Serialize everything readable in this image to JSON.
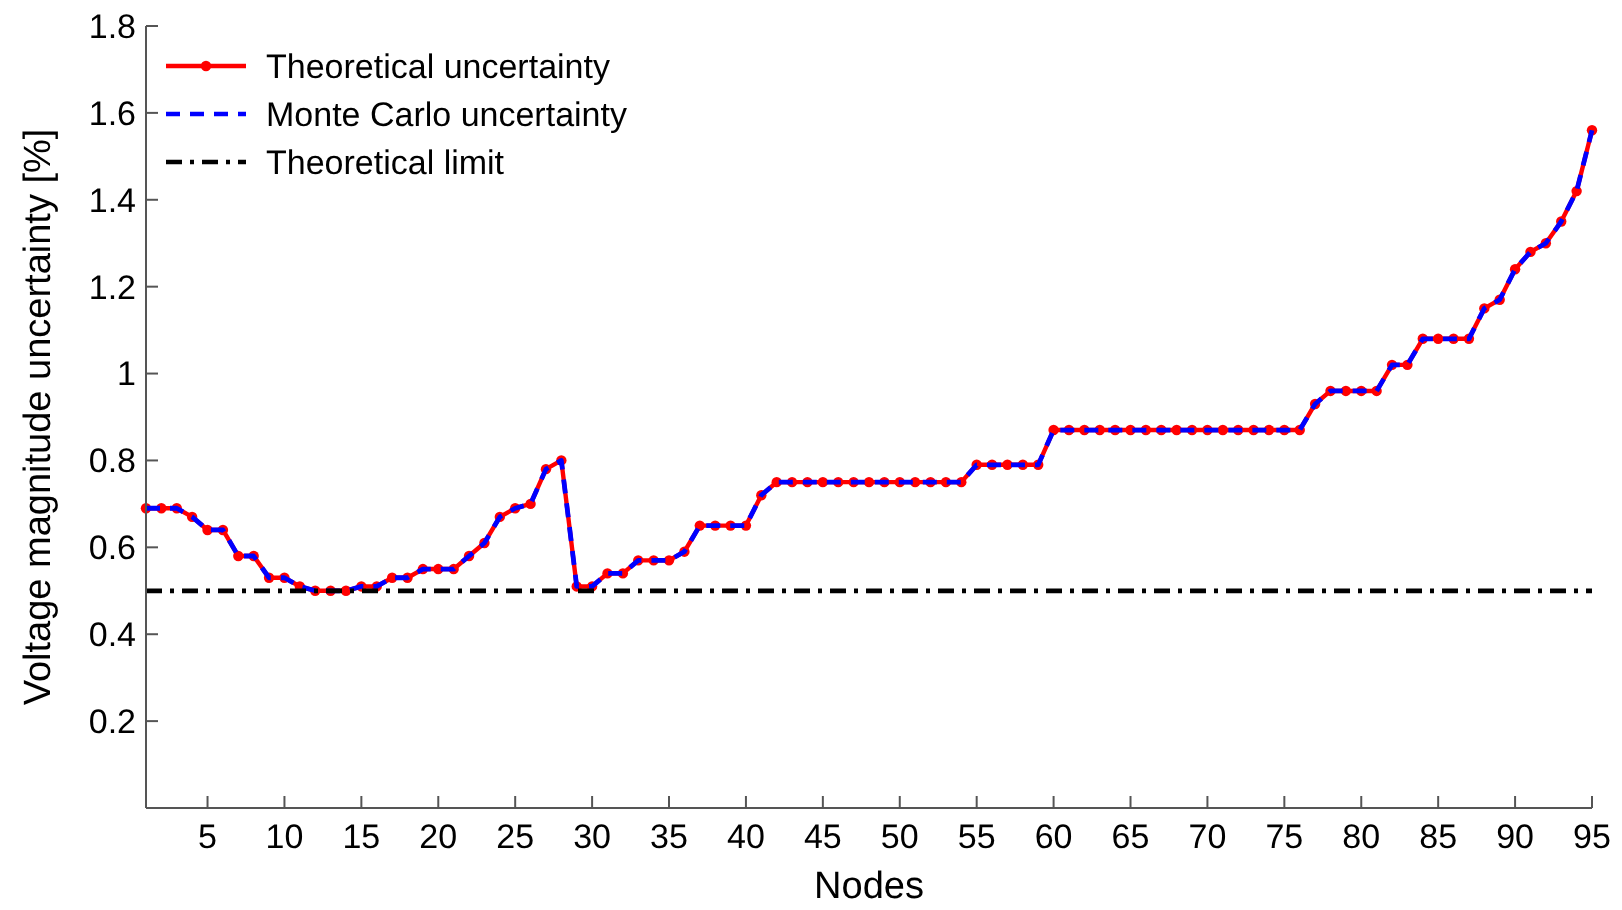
{
  "chart_data": {
    "type": "line",
    "xlabel": "Nodes",
    "ylabel": "Voltage magnitude uncertainty [%]",
    "x": [
      1,
      2,
      3,
      4,
      5,
      6,
      7,
      8,
      9,
      10,
      11,
      12,
      13,
      14,
      15,
      16,
      17,
      18,
      19,
      20,
      21,
      22,
      23,
      24,
      25,
      26,
      27,
      28,
      29,
      30,
      31,
      32,
      33,
      34,
      35,
      36,
      37,
      38,
      39,
      40,
      41,
      42,
      43,
      44,
      45,
      46,
      47,
      48,
      49,
      50,
      51,
      52,
      53,
      54,
      55,
      56,
      57,
      58,
      59,
      60,
      61,
      62,
      63,
      64,
      65,
      66,
      67,
      68,
      69,
      70,
      71,
      72,
      73,
      74,
      75,
      76,
      77,
      78,
      79,
      80,
      81,
      82,
      83,
      84,
      85,
      86,
      87,
      88,
      89,
      90,
      91,
      92,
      93,
      94,
      95
    ],
    "series": [
      {
        "name": "Theoretical uncertainty",
        "color": "#ff0000",
        "marker": "circle",
        "line_style": "solid",
        "values": [
          0.69,
          0.69,
          0.69,
          0.67,
          0.64,
          0.64,
          0.58,
          0.58,
          0.53,
          0.53,
          0.51,
          0.5,
          0.5,
          0.5,
          0.51,
          0.51,
          0.53,
          0.53,
          0.55,
          0.55,
          0.55,
          0.58,
          0.61,
          0.67,
          0.69,
          0.7,
          0.78,
          0.8,
          0.51,
          0.51,
          0.54,
          0.54,
          0.57,
          0.57,
          0.57,
          0.59,
          0.65,
          0.65,
          0.65,
          0.65,
          0.72,
          0.75,
          0.75,
          0.75,
          0.75,
          0.75,
          0.75,
          0.75,
          0.75,
          0.75,
          0.75,
          0.75,
          0.75,
          0.75,
          0.79,
          0.79,
          0.79,
          0.79,
          0.79,
          0.87,
          0.87,
          0.87,
          0.87,
          0.87,
          0.87,
          0.87,
          0.87,
          0.87,
          0.87,
          0.87,
          0.87,
          0.87,
          0.87,
          0.87,
          0.87,
          0.87,
          0.93,
          0.96,
          0.96,
          0.96,
          0.96,
          1.02,
          1.02,
          1.08,
          1.08,
          1.08,
          1.08,
          1.15,
          1.17,
          1.24,
          1.28,
          1.3,
          1.35,
          1.42,
          1.56
        ]
      },
      {
        "name": "Monte Carlo uncertainty",
        "color": "#0000ff",
        "marker": "none",
        "line_style": "dashed",
        "values": [
          0.69,
          0.69,
          0.69,
          0.67,
          0.64,
          0.64,
          0.58,
          0.58,
          0.53,
          0.53,
          0.51,
          0.5,
          0.5,
          0.5,
          0.51,
          0.51,
          0.53,
          0.53,
          0.55,
          0.55,
          0.55,
          0.58,
          0.61,
          0.67,
          0.69,
          0.7,
          0.78,
          0.8,
          0.51,
          0.51,
          0.54,
          0.54,
          0.57,
          0.57,
          0.57,
          0.59,
          0.65,
          0.65,
          0.65,
          0.65,
          0.72,
          0.75,
          0.75,
          0.75,
          0.75,
          0.75,
          0.75,
          0.75,
          0.75,
          0.75,
          0.75,
          0.75,
          0.75,
          0.75,
          0.79,
          0.79,
          0.79,
          0.79,
          0.79,
          0.87,
          0.87,
          0.87,
          0.87,
          0.87,
          0.87,
          0.87,
          0.87,
          0.87,
          0.87,
          0.87,
          0.87,
          0.87,
          0.87,
          0.87,
          0.87,
          0.87,
          0.93,
          0.96,
          0.96,
          0.96,
          0.96,
          1.02,
          1.02,
          1.08,
          1.08,
          1.08,
          1.08,
          1.15,
          1.17,
          1.24,
          1.28,
          1.3,
          1.35,
          1.42,
          1.56
        ]
      },
      {
        "name": "Theoretical limit",
        "color": "#000000",
        "marker": "none",
        "line_style": "dashdot",
        "x": [
          1,
          95
        ],
        "values": [
          0.5,
          0.5
        ]
      }
    ],
    "xlim": [
      1,
      95
    ],
    "ylim": [
      0,
      1.8
    ],
    "xticks": [
      5,
      10,
      15,
      20,
      25,
      30,
      35,
      40,
      45,
      50,
      55,
      60,
      65,
      70,
      75,
      80,
      85,
      90,
      95
    ],
    "yticks": [
      0.2,
      0.4,
      0.6,
      0.8,
      1,
      1.2,
      1.4,
      1.6,
      1.8
    ],
    "grid": false,
    "legend": "top left"
  }
}
